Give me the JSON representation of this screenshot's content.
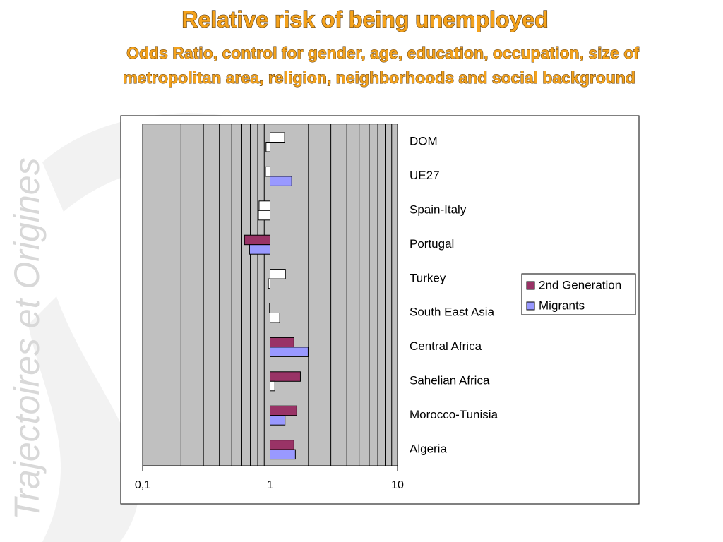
{
  "watermark": "Trajectoires et Origines",
  "chart_data": {
    "type": "bar",
    "orientation": "horizontal",
    "title": "Relative risk of being unemployed",
    "subtitle": [
      "Odds Ratio, control for gender, age, education, occupation, size of",
      "metropolitan area, religion, neighborhoods and social background"
    ],
    "categories": [
      "DOM",
      "UE27",
      "Spain-Italy",
      "Portugal",
      "Turkey",
      "South East Asia",
      "Central Africa",
      "Sahelian Africa",
      "Morocco-Tunisia",
      "Algeria"
    ],
    "series": [
      {
        "name": "2nd Generation",
        "color": "#993366",
        "values": [
          1.3,
          0.92,
          0.82,
          0.63,
          1.32,
          0.99,
          1.54,
          1.73,
          1.62,
          1.54
        ],
        "colors": [
          "#ffffff",
          "#ffffff",
          "#ffffff",
          "#993366",
          "#ffffff",
          "#ffffff",
          "#993366",
          "#993366",
          "#993366",
          "#993366"
        ]
      },
      {
        "name": "Migrants",
        "color": "#9999ff",
        "values": [
          0.93,
          1.48,
          0.81,
          0.69,
          0.97,
          1.19,
          1.99,
          1.09,
          1.31,
          1.58
        ],
        "colors": [
          "#ffffff",
          "#9999ff",
          "#ffffff",
          "#9999ff",
          "#ffffff",
          "#ffffff",
          "#9999ff",
          "#ffffff",
          "#9999ff",
          "#9999ff"
        ]
      }
    ],
    "xscale": "log",
    "base": 1,
    "xlim": [
      0.1,
      10
    ],
    "xticks": [
      {
        "value": 0.1,
        "label": "0,1"
      },
      1,
      10
    ],
    "minor_xticks": [
      0.2,
      0.3,
      0.4,
      0.5,
      0.6,
      0.7,
      0.8,
      0.9,
      2,
      3,
      4,
      5,
      6,
      7,
      8,
      9
    ],
    "grid": true,
    "plot_background": "#c0c0c0",
    "legend": "right"
  }
}
